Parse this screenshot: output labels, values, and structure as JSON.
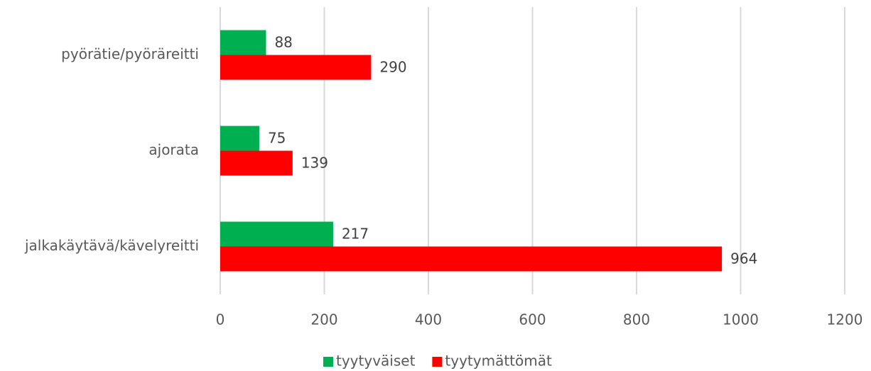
{
  "chart_data": {
    "type": "bar",
    "orientation": "horizontal",
    "categories": [
      "pyörätie/pyöräreitti",
      "ajorata",
      "jalkakäytävä/kävelyreitti"
    ],
    "series": [
      {
        "name": "tyytyväiset",
        "color": "#00b050",
        "values": [
          88,
          75,
          217
        ]
      },
      {
        "name": "tyytymättömät",
        "color": "#ff0000",
        "values": [
          290,
          139,
          964
        ]
      }
    ],
    "xlim": [
      0,
      1200
    ],
    "xticks": [
      0,
      200,
      400,
      600,
      800,
      1000,
      1200
    ],
    "grid": true,
    "legend": "bottom"
  }
}
